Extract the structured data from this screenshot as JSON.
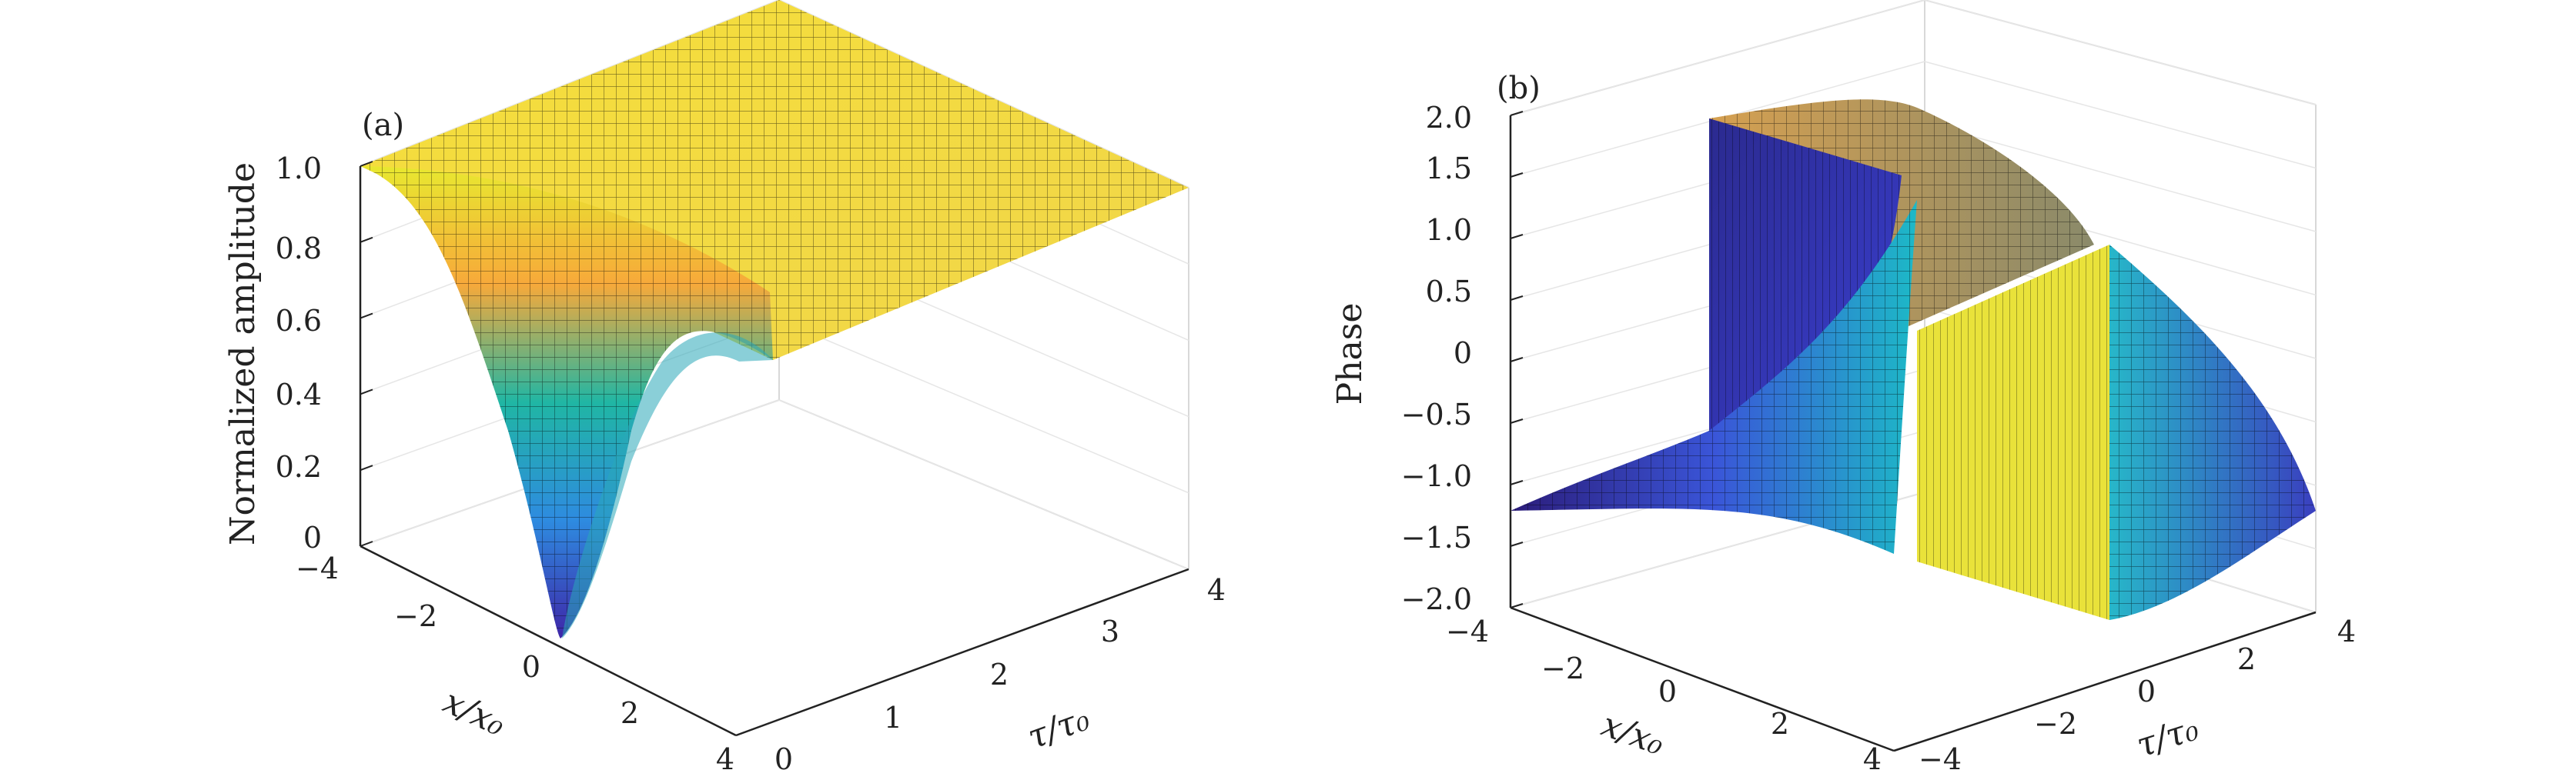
{
  "chart_data": [
    {
      "panel_label": "(a)",
      "type": "surface",
      "xlabel": "x/x₀",
      "ylabel": "τ/τ₀",
      "zlabel": "Normalized amplitude",
      "xlim": [
        -4,
        4
      ],
      "ylim": [
        0,
        4
      ],
      "zlim": [
        0,
        1.0
      ],
      "xticks": [
        "−4",
        "−2",
        "0",
        "2",
        "4"
      ],
      "yticks": [
        "0",
        "1",
        "2",
        "3",
        "4"
      ],
      "zticks": [
        "0",
        "0.2",
        "0.4",
        "0.6",
        "0.8",
        "1.0"
      ],
      "surface": "Normalized amplitude dips to about 0 at x/x0 = 0, tau/tau0 = 0 and recovers toward 1.0 away from that point; surface is flat at 1.0 over most of the domain.",
      "samples": [
        {
          "x": -4,
          "tau": 0,
          "z": 1.0
        },
        {
          "x": 0,
          "tau": 0,
          "z": 0.0
        },
        {
          "x": 4,
          "tau": 0,
          "z": 1.0
        },
        {
          "x": 0,
          "tau": 1,
          "z": 0.65
        },
        {
          "x": 0,
          "tau": 4,
          "z": 1.0
        }
      ],
      "grid": true,
      "colormap": "parula"
    },
    {
      "panel_label": "(b)",
      "type": "surface",
      "xlabel": "x/x₀",
      "ylabel": "τ/τ₀",
      "zlabel": "Phase",
      "xlim": [
        -4,
        4
      ],
      "ylim": [
        -4,
        4
      ],
      "zlim": [
        -2.0,
        2.0
      ],
      "xticks": [
        "−4",
        "−2",
        "0",
        "2",
        "4"
      ],
      "yticks": [
        "−4",
        "−2",
        "0",
        "2",
        "4"
      ],
      "zticks": [
        "−2.0",
        "−1.5",
        "−1.0",
        "−0.5",
        "0",
        "0.5",
        "1.0",
        "1.5",
        "2.0"
      ],
      "surface": "Phase surface with a vertical discontinuity (jump between about -1.6 and +1.6) along x/x0 = 0, twisted in a spiral around the singular point.",
      "samples": [
        {
          "x": -4,
          "tau": -4,
          "z": -1.2
        },
        {
          "x": 4,
          "tau": 4,
          "z": -1.2
        },
        {
          "x": 0,
          "tau": 4,
          "z": 1.57
        },
        {
          "x": 0,
          "tau": -4,
          "z": -1.57
        }
      ],
      "grid": true,
      "colormap": "parula"
    }
  ]
}
